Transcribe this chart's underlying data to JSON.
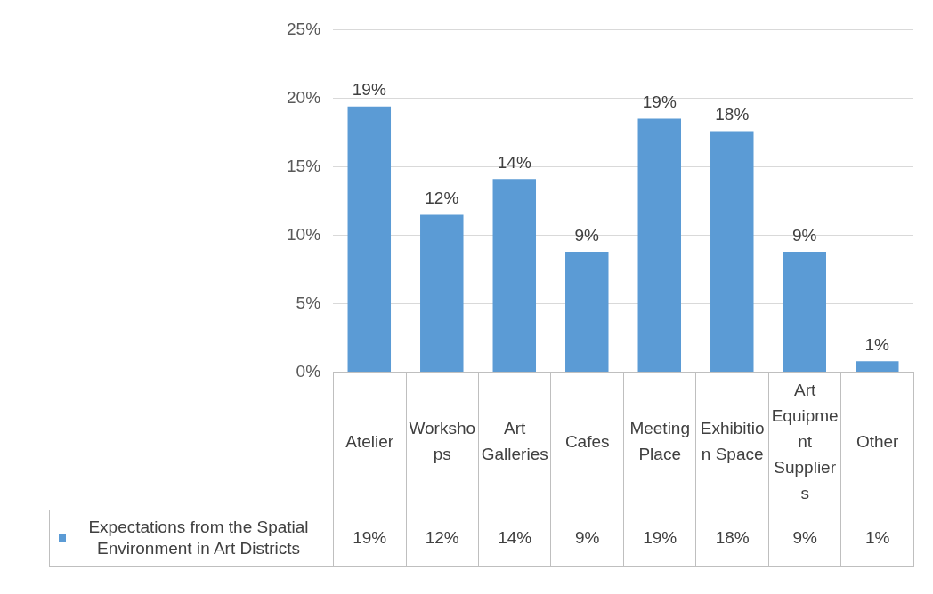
{
  "chart_data": {
    "type": "bar",
    "categories": [
      "Atelier",
      "Workshops",
      "Art Galleries",
      "Cafes",
      "Meeting Place",
      "Exhibition Space",
      "Art Equipment Suppliers",
      "Other"
    ],
    "series": [
      {
        "name": "Expectations from the Spatial Environment in Art Districts",
        "color": "#5b9bd5",
        "values": [
          19.4,
          11.5,
          14.1,
          8.8,
          18.5,
          17.6,
          8.8,
          0.8
        ],
        "value_labels": [
          "19%",
          "12%",
          "14%",
          "9%",
          "19%",
          "18%",
          "9%",
          "1%"
        ]
      }
    ],
    "ylim": [
      0,
      25
    ],
    "yticks": [
      {
        "value": 0,
        "label": "0%"
      },
      {
        "value": 5,
        "label": "5%"
      },
      {
        "value": 10,
        "label": "10%"
      },
      {
        "value": 15,
        "label": "15%"
      },
      {
        "value": 20,
        "label": "20%"
      },
      {
        "value": 25,
        "label": "25%"
      }
    ],
    "grid": "y",
    "legend": "bottom"
  }
}
